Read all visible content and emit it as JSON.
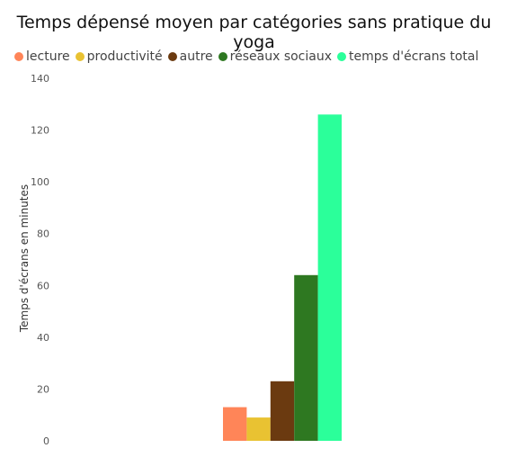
{
  "chart_data": {
    "type": "bar",
    "title": "Temps dépensé moyen par catégories sans pratique du yoga",
    "xlabel": "",
    "ylabel": "Temps d'écrans en minutes",
    "ylim": [
      0,
      140
    ],
    "yticks": [
      0,
      20,
      40,
      60,
      80,
      100,
      120,
      140
    ],
    "grid": false,
    "legend_position": "top-left",
    "series": [
      {
        "name": "lecture",
        "value": 13,
        "color": "#FF8558"
      },
      {
        "name": "productivité",
        "value": 9,
        "color": "#E9C232"
      },
      {
        "name": "autre",
        "value": 23,
        "color": "#6B3A10"
      },
      {
        "name": "réseaux sociaux",
        "value": 64,
        "color": "#2E7821"
      },
      {
        "name": "temps d'écrans total",
        "value": 126,
        "color": "#2BFF9A"
      }
    ]
  }
}
